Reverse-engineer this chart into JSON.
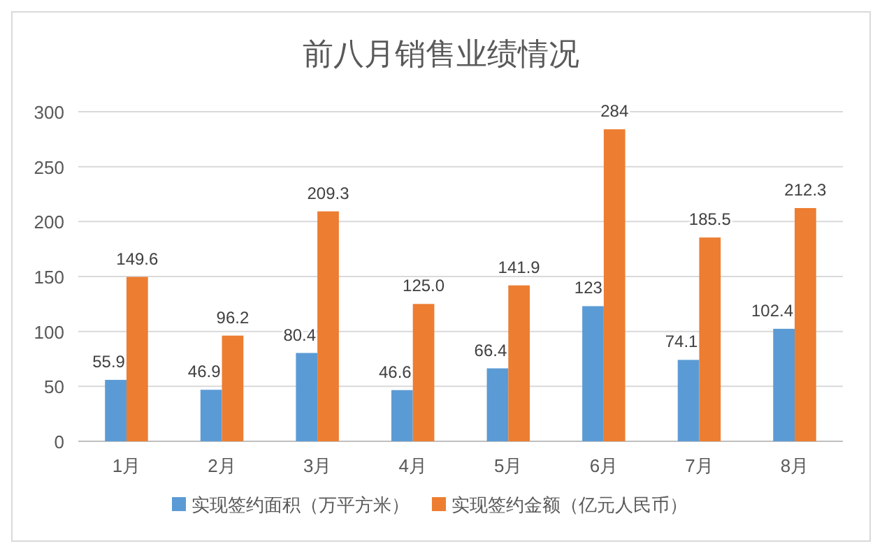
{
  "chart_data": {
    "type": "bar",
    "title": "前八月销售业绩情况",
    "categories": [
      "1月",
      "2月",
      "3月",
      "4月",
      "5月",
      "6月",
      "7月",
      "8月"
    ],
    "series": [
      {
        "name": "实现签约面积（万平方米）",
        "color": "#5b9bd5",
        "values": [
          55.9,
          46.9,
          80.4,
          46.6,
          66.4,
          123,
          74.1,
          102.4
        ],
        "value_labels": [
          "55.9",
          "46.9",
          "80.4",
          "46.6",
          "66.4",
          "123",
          "74.1",
          "102.4"
        ]
      },
      {
        "name": "实现签约金额（亿元人民币）",
        "color": "#ed7d31",
        "values": [
          149.6,
          96.2,
          209.3,
          125.0,
          141.9,
          284,
          185.5,
          212.3
        ],
        "value_labels": [
          "149.6",
          "96.2",
          "209.3",
          "125.0",
          "141.9",
          "284",
          "185.5",
          "212.3"
        ]
      }
    ],
    "ylim": [
      0,
      300
    ],
    "yticks": [
      0,
      50,
      100,
      150,
      200,
      250,
      300
    ],
    "grid": "y",
    "legend": "bottom"
  }
}
